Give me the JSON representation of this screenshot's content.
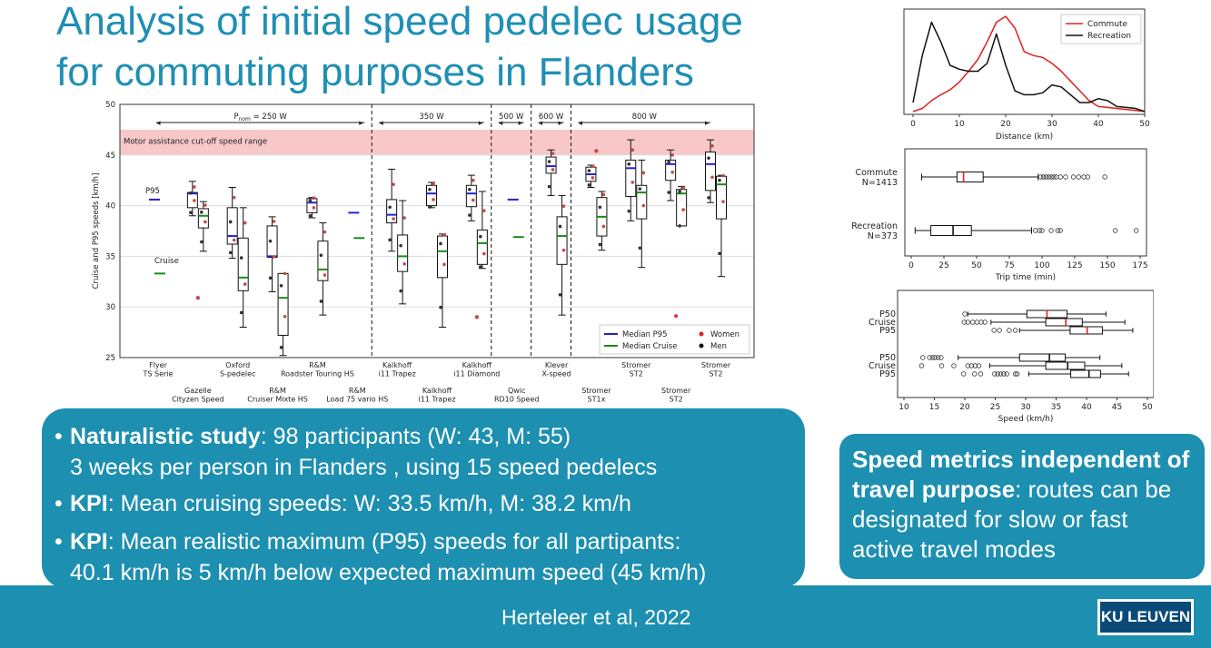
{
  "title": {
    "line1": "Analysis of initial speed pedelec usage",
    "line2": "for commuting purposes in Flanders"
  },
  "main_box": {
    "b1_bold": "Naturalistic study",
    "b1_rest": ": 98 participants (W: 43, M: 55)",
    "b1_line2": "3 weeks per person in Flanders , using 15 speed pedelecs",
    "b2_bold": "KPI",
    "b2_rest": ": Mean cruising speeds: W: 33.5 km/h, M: 38.2 km/h",
    "b3_bold": "KPI",
    "b3_rest": ": Mean realistic maximum (P95) speeds for all partipants:",
    "b3_line2": "40.1 km/h is 5 km/h below expected maximum speed (45 km/h)"
  },
  "side_box": {
    "bold": "Speed metrics independent of travel purpose",
    "rest": ": routes can be designated for slow or fast active travel modes"
  },
  "footer": {
    "citation": "Herteleer et al, 2022",
    "logo": "KU LEUVEN"
  },
  "colors": {
    "accent": "#1d8fb0",
    "title": "#1f8fb4",
    "commute": "#e02020",
    "recreation": "#111111"
  },
  "chart_data": [
    {
      "type": "boxplot",
      "ylabel": "Cruise and P95 speeds [km/h]",
      "ylim": [
        25,
        50
      ],
      "yticks": [
        25,
        30,
        35,
        40,
        45,
        50
      ],
      "cutoff_band": {
        "label": "Motor assistance cut-off speed range",
        "range": [
          45,
          47.5
        ]
      },
      "power_groups": [
        {
          "label": "P",
          "sub": "nom",
          "tail": " = 250 W"
        },
        {
          "label": "350 W"
        },
        {
          "label": "500 W"
        },
        {
          "label": "600 W"
        },
        {
          "label": "800 W"
        }
      ],
      "categories": [
        {
          "top": [
            "Flyer",
            "TS Serie"
          ]
        },
        {
          "bottom": [
            "Gazelle",
            "Cityzen Speed"
          ]
        },
        {
          "top": [
            "Oxford",
            "S-pedelec"
          ]
        },
        {
          "bottom": [
            "R&M",
            "Cruiser Mixte HS"
          ]
        },
        {
          "top": [
            "R&M",
            "Roadster Touring HS"
          ]
        },
        {
          "bottom": [
            "R&M",
            "Load 75 vario HS"
          ]
        },
        {
          "top": [
            "Kalkhoff",
            "i11 Trapez"
          ]
        },
        {
          "bottom": [
            "Kalkhoff",
            "i11 Trapez"
          ]
        },
        {
          "top": [
            "Kalkhoff",
            "i11 Diamond"
          ]
        },
        {
          "bottom": [
            "Qwic",
            "RD10 Speed"
          ]
        },
        {
          "top": [
            "Klever",
            "X-speed"
          ]
        },
        {
          "bottom": [
            "Stromer",
            "ST1x"
          ]
        },
        {
          "top": [
            "Stromer",
            "ST2"
          ]
        },
        {
          "bottom": [
            "Stromer",
            "ST2"
          ]
        },
        {
          "top": [
            "Stromer",
            "ST2"
          ]
        }
      ],
      "inline_labels": {
        "p95": "P95",
        "cruise": "Cruise"
      },
      "p95_boxes": [
        null,
        {
          "q1": 39.8,
          "med": 41.2,
          "q3": 41.3,
          "lo": 39.0,
          "hi": 42.4
        },
        {
          "q1": 36.2,
          "med": 37.0,
          "q3": 39.8,
          "lo": 34.8,
          "hi": 41.8
        },
        {
          "q1": 34.9,
          "med": 35.0,
          "q3": 38.0,
          "lo": 31.5,
          "hi": 38.9
        },
        {
          "q1": 39.3,
          "med": 40.3,
          "q3": 40.7,
          "lo": 38.8,
          "hi": 40.8
        },
        null,
        {
          "q1": 38.3,
          "med": 39.1,
          "q3": 40.6,
          "lo": 35.5,
          "hi": 43.6
        },
        {
          "q1": 40.0,
          "med": 41.2,
          "q3": 42.0,
          "lo": 39.8,
          "hi": 42.3
        },
        {
          "q1": 39.9,
          "med": 41.2,
          "q3": 42.0,
          "lo": 38.5,
          "hi": 43.0
        },
        null,
        {
          "q1": 43.2,
          "med": 43.9,
          "q3": 44.8,
          "lo": 41.0,
          "hi": 45.5
        },
        {
          "q1": 42.4,
          "med": 43.1,
          "q3": 43.8,
          "lo": 41.8,
          "hi": 44.0
        },
        {
          "q1": 40.9,
          "med": 43.7,
          "q3": 44.5,
          "lo": 38.5,
          "hi": 46.5
        },
        {
          "q1": 42.5,
          "med": 44.1,
          "q3": 44.5,
          "lo": 40.5,
          "hi": 45.5
        },
        {
          "q1": 41.5,
          "med": 44.1,
          "q3": 45.3,
          "lo": 40.3,
          "hi": 46.5
        }
      ],
      "cruise_boxes": [
        null,
        {
          "q1": 37.8,
          "med": 39.0,
          "q3": 39.7,
          "lo": 35.5,
          "hi": 40.4
        },
        {
          "q1": 31.6,
          "med": 32.9,
          "q3": 36.8,
          "lo": 28.0,
          "hi": 39.8
        },
        {
          "q1": 27.2,
          "med": 30.9,
          "q3": 33.3,
          "lo": 25.2,
          "hi": 33.3
        },
        {
          "q1": 32.6,
          "med": 33.7,
          "q3": 36.5,
          "lo": 29.2,
          "hi": 38.3
        },
        null,
        {
          "q1": 33.5,
          "med": 35.0,
          "q3": 37.1,
          "lo": 30.3,
          "hi": 40.5
        },
        {
          "q1": 32.9,
          "med": 35.5,
          "q3": 37.0,
          "lo": 28.0,
          "hi": 37.2
        },
        {
          "q1": 34.2,
          "med": 36.3,
          "q3": 37.6,
          "lo": 33.8,
          "hi": 41.4
        },
        null,
        {
          "q1": 34.2,
          "med": 37.0,
          "q3": 38.9,
          "lo": 29.2,
          "hi": 41.0
        },
        {
          "q1": 37.0,
          "med": 38.9,
          "q3": 40.8,
          "lo": 35.6,
          "hi": 41.4
        },
        {
          "q1": 38.7,
          "med": 41.3,
          "q3": 42.0,
          "lo": 33.9,
          "hi": 44.5
        },
        {
          "q1": 38.0,
          "med": 41.2,
          "q3": 41.6,
          "lo": 38.0,
          "hi": 41.9
        },
        {
          "q1": 38.7,
          "med": 42.1,
          "q3": 42.9,
          "lo": 33.0,
          "hi": 43.0
        }
      ],
      "single_p95": [
        {
          "i": 0,
          "v": 40.6
        },
        {
          "i": 5,
          "v": 39.3
        },
        {
          "i": 9,
          "v": 40.6
        }
      ],
      "single_cruise": [
        {
          "i": 0,
          "v": 33.3
        },
        {
          "i": 5,
          "v": 36.8
        },
        {
          "i": 9,
          "v": 36.9
        }
      ],
      "outliers": [
        {
          "i": 1,
          "v": 30.9
        },
        {
          "i": 8,
          "v": 29.0
        },
        {
          "i": 13,
          "v": 29.1
        },
        {
          "i": 11,
          "v": 45.4
        }
      ],
      "legend": [
        "Median P95",
        "Median Cruise",
        "Women",
        "Men"
      ]
    },
    {
      "type": "line",
      "title": "",
      "xlabel": "Distance (km)",
      "xlim": [
        0,
        50
      ],
      "xticks": [
        0,
        10,
        20,
        30,
        40,
        50
      ],
      "legend_position": "top-right",
      "series": [
        {
          "name": "Commute",
          "color": "#e02020",
          "x": [
            0,
            2,
            4,
            6,
            8,
            10,
            12,
            14,
            16,
            18,
            20,
            22,
            24,
            26,
            28,
            30,
            32,
            34,
            36,
            38,
            40,
            42,
            44,
            46,
            48,
            50
          ],
          "y": [
            0.03,
            0.06,
            0.14,
            0.2,
            0.25,
            0.33,
            0.44,
            0.56,
            0.74,
            0.94,
            1.0,
            0.88,
            0.64,
            0.6,
            0.58,
            0.52,
            0.44,
            0.34,
            0.24,
            0.14,
            0.08,
            0.07,
            0.06,
            0.05,
            0.04,
            0.03
          ]
        },
        {
          "name": "Recreation",
          "color": "#111111",
          "x": [
            0,
            2,
            4,
            6,
            8,
            10,
            12,
            14,
            16,
            18,
            20,
            22,
            24,
            26,
            28,
            30,
            32,
            34,
            36,
            38,
            40,
            42,
            44,
            46,
            48,
            50
          ],
          "y": [
            0.12,
            0.6,
            0.94,
            0.74,
            0.5,
            0.46,
            0.44,
            0.44,
            0.52,
            0.82,
            0.5,
            0.24,
            0.2,
            0.2,
            0.22,
            0.3,
            0.28,
            0.2,
            0.12,
            0.12,
            0.16,
            0.14,
            0.08,
            0.07,
            0.06,
            0.03
          ]
        }
      ]
    },
    {
      "type": "boxplot",
      "xlabel": "Trip time (min)",
      "xlim": [
        0,
        175
      ],
      "xticks": [
        0,
        25,
        50,
        75,
        100,
        125,
        150,
        175
      ],
      "boxes": [
        {
          "label": [
            "Commute",
            "N=1413"
          ],
          "q1": 35,
          "med": 40,
          "q3": 55,
          "lo": 8,
          "hi": 97,
          "color": "#e02020",
          "outliers": [
            99,
            101,
            103,
            105,
            107,
            109,
            111,
            114,
            118,
            124,
            128,
            132,
            135,
            148
          ]
        },
        {
          "label": [
            "Recreation",
            "N=373"
          ],
          "q1": 15,
          "med": 32,
          "q3": 46,
          "lo": 3,
          "hi": 92,
          "color": "#111111",
          "outliers": [
            95,
            98,
            100,
            107,
            112,
            114,
            156,
            172
          ]
        }
      ]
    },
    {
      "type": "boxplot",
      "xlabel": "Speed (km/h)",
      "xlim": [
        10,
        50
      ],
      "xticks": [
        10,
        15,
        20,
        25,
        30,
        35,
        40,
        45,
        50
      ],
      "boxes": [
        {
          "label": "P50",
          "q1": 30.2,
          "med": 33.5,
          "q3": 36.8,
          "lo": 20.5,
          "hi": 43.2,
          "color": "#e02020",
          "outliers": [
            20.0
          ]
        },
        {
          "label": "Cruise",
          "q1": 33.3,
          "med": 36.6,
          "q3": 39.3,
          "lo": 24.3,
          "hi": 46.3,
          "color": "#e02020",
          "outliers": [
            19.9,
            20.5,
            21.3,
            22.0,
            22.7,
            23.3
          ]
        },
        {
          "label": "P95",
          "q1": 37.3,
          "med": 40.1,
          "q3": 42.6,
          "lo": 29.0,
          "hi": 47.6,
          "color": "#e02020",
          "outliers": [
            24.8,
            25.7,
            27.3,
            28.3
          ]
        },
        {
          "label": "P50",
          "q1": 29.0,
          "med": 33.9,
          "q3": 36.5,
          "lo": 18.9,
          "hi": 42.2,
          "color": "#111111",
          "outliers": [
            13.1,
            14.2,
            14.7,
            15.1,
            15.6,
            16.1
          ]
        },
        {
          "label": "Cruise",
          "q1": 33.3,
          "med": 36.9,
          "q3": 39.7,
          "lo": 24.1,
          "hi": 45.8,
          "color": "#111111",
          "outliers": [
            12.9,
            16.2,
            18.2,
            20.5,
            21.1,
            21.7,
            22.3
          ]
        },
        {
          "label": "P95",
          "q1": 37.4,
          "med": 40.4,
          "q3": 42.3,
          "lo": 30.5,
          "hi": 46.9,
          "color": "#111111",
          "outliers": [
            19.8,
            21.6,
            22.6,
            24.9,
            25.4,
            25.9,
            26.4,
            26.9,
            28.3,
            28.6
          ]
        }
      ]
    }
  ]
}
